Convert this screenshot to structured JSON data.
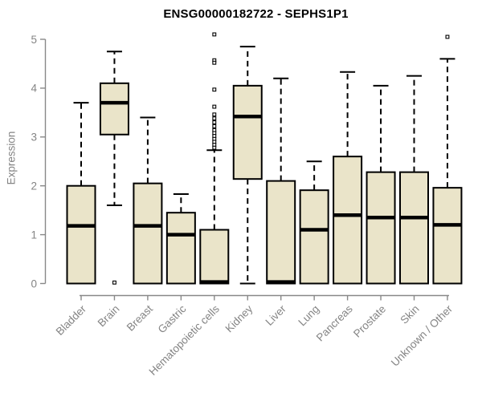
{
  "chart_data": {
    "type": "boxplot",
    "title": "ENSG00000182722 - SEPHS1P1",
    "ylabel": "Expression",
    "xlabel": "",
    "ylim": [
      0,
      5
    ],
    "yticks": [
      0,
      1,
      2,
      3,
      4,
      5
    ],
    "grid": false,
    "legend": "none",
    "colors": {
      "box_fill": "#EAE4C9",
      "box_stroke": "#000000",
      "median": "#000000",
      "whisker": "#000000",
      "outlier_stroke": "#000000",
      "outlier_fill": "#ffffff",
      "axis_line": "#888888",
      "axis_text": "#848484",
      "title_text": "#000000",
      "background": "#ffffff"
    },
    "categories": [
      "Bladder",
      "Brain",
      "Breast",
      "Gastric",
      "Hematopoietic cells",
      "Kidney",
      "Liver",
      "Lung",
      "Pancreas",
      "Prostate",
      "Skin",
      "Unknown / Other"
    ],
    "series": [
      {
        "name": "Bladder",
        "whisker_low": 0,
        "q1": 0,
        "median": 1.18,
        "q3": 2.0,
        "whisker_high": 3.7,
        "outliers": []
      },
      {
        "name": "Brain",
        "whisker_low": 1.6,
        "q1": 3.05,
        "median": 3.7,
        "q3": 4.1,
        "whisker_high": 4.75,
        "outliers": [
          0.02
        ]
      },
      {
        "name": "Breast",
        "whisker_low": 0,
        "q1": 0,
        "median": 1.18,
        "q3": 2.05,
        "whisker_high": 3.4,
        "outliers": []
      },
      {
        "name": "Gastric",
        "whisker_low": 0,
        "q1": 0,
        "median": 1.0,
        "q3": 1.45,
        "whisker_high": 1.83,
        "outliers": []
      },
      {
        "name": "Hematopoietic cells",
        "whisker_low": 0,
        "q1": 0,
        "median": 0.03,
        "q3": 1.1,
        "whisker_high": 2.73,
        "outliers": [
          5.1,
          4.57,
          4.52,
          3.97,
          3.62,
          3.46,
          3.38,
          3.3,
          3.22,
          3.14,
          3.08,
          3.02,
          2.96,
          2.9,
          2.84,
          2.78
        ]
      },
      {
        "name": "Kidney",
        "whisker_low": 0,
        "q1": 2.14,
        "median": 3.42,
        "q3": 4.05,
        "whisker_high": 4.85,
        "outliers": []
      },
      {
        "name": "Liver",
        "whisker_low": 0,
        "q1": 0,
        "median": 0.03,
        "q3": 2.1,
        "whisker_high": 4.2,
        "outliers": []
      },
      {
        "name": "Lung",
        "whisker_low": 0,
        "q1": 0,
        "median": 1.1,
        "q3": 1.91,
        "whisker_high": 2.5,
        "outliers": []
      },
      {
        "name": "Pancreas",
        "whisker_low": 0,
        "q1": 0,
        "median": 1.4,
        "q3": 2.6,
        "whisker_high": 4.33,
        "outliers": []
      },
      {
        "name": "Prostate",
        "whisker_low": 0,
        "q1": 0,
        "median": 1.35,
        "q3": 2.28,
        "whisker_high": 4.05,
        "outliers": []
      },
      {
        "name": "Skin",
        "whisker_low": 0,
        "q1": 0,
        "median": 1.35,
        "q3": 2.28,
        "whisker_high": 4.25,
        "outliers": []
      },
      {
        "name": "Unknown / Other",
        "whisker_low": 0,
        "q1": 0,
        "median": 1.2,
        "q3": 1.96,
        "whisker_high": 4.6,
        "outliers": [
          5.05
        ]
      }
    ]
  }
}
